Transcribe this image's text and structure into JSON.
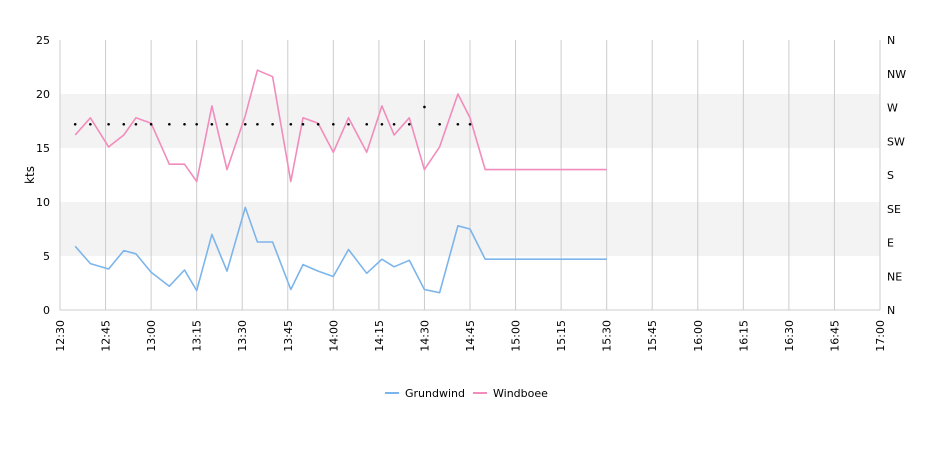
{
  "chart_data": {
    "type": "line",
    "ylabel": "kts",
    "ylim": [
      0,
      25
    ],
    "y_ticks": [
      "0",
      "5",
      "10",
      "15",
      "20",
      "25"
    ],
    "y2_ticks": [
      "N",
      "NE",
      "E",
      "SE",
      "S",
      "SW",
      "W",
      "NW",
      "N"
    ],
    "x_ticks": [
      "12:30",
      "12:45",
      "13:00",
      "13:15",
      "13:30",
      "13:45",
      "14:00",
      "14:15",
      "14:30",
      "14:45",
      "15:00",
      "15:15",
      "15:30",
      "15:45",
      "16:00",
      "16:15",
      "16:30",
      "16:45",
      "17:00"
    ],
    "x_range": [
      "12:30",
      "17:00"
    ],
    "bands": [
      [
        5,
        10
      ],
      [
        15,
        20
      ]
    ],
    "x": [
      "12:35",
      "12:40",
      "12:46",
      "12:51",
      "12:55",
      "13:00",
      "13:06",
      "13:11",
      "13:15",
      "13:20",
      "13:25",
      "13:31",
      "13:35",
      "13:40",
      "13:46",
      "13:50",
      "13:55",
      "14:00",
      "14:05",
      "14:11",
      "14:16",
      "14:20",
      "14:25",
      "14:30",
      "14:35",
      "14:41",
      "14:45",
      "14:50",
      "14:56",
      "15:00",
      "15:05",
      "15:10",
      "15:16",
      "15:20",
      "15:25",
      "15:29",
      "15:30"
    ],
    "series": [
      {
        "name": "Grundwind",
        "color": "#7cb5ec",
        "values": [
          5.9,
          4.3,
          3.8,
          5.5,
          5.2,
          3.5,
          2.2,
          3.7,
          1.8,
          7.0,
          3.6,
          9.5,
          6.3,
          6.3,
          1.9,
          4.2,
          3.6,
          3.1,
          5.6,
          3.4,
          4.7,
          4.0,
          4.6,
          1.9,
          1.6,
          7.8,
          7.5,
          4.7,
          4.7,
          4.7,
          4.7,
          4.7,
          4.7,
          4.7,
          4.7,
          4.7,
          4.7
        ]
      },
      {
        "name": "Windboee",
        "color": "#f28cbc",
        "values": [
          16.2,
          17.8,
          15.1,
          16.2,
          17.8,
          17.3,
          13.5,
          13.5,
          11.9,
          18.9,
          13.0,
          18.0,
          22.2,
          21.6,
          11.9,
          17.8,
          17.3,
          14.6,
          17.8,
          14.6,
          18.9,
          16.2,
          17.8,
          13.0,
          15.1,
          20.0,
          17.8,
          13.0,
          13.0,
          13.0,
          13.0,
          13.0,
          13.0,
          13.0,
          13.0,
          13.0,
          13.0
        ]
      }
    ],
    "direction_marker_color": "#000000",
    "legend": {
      "placement": "bottom"
    }
  }
}
